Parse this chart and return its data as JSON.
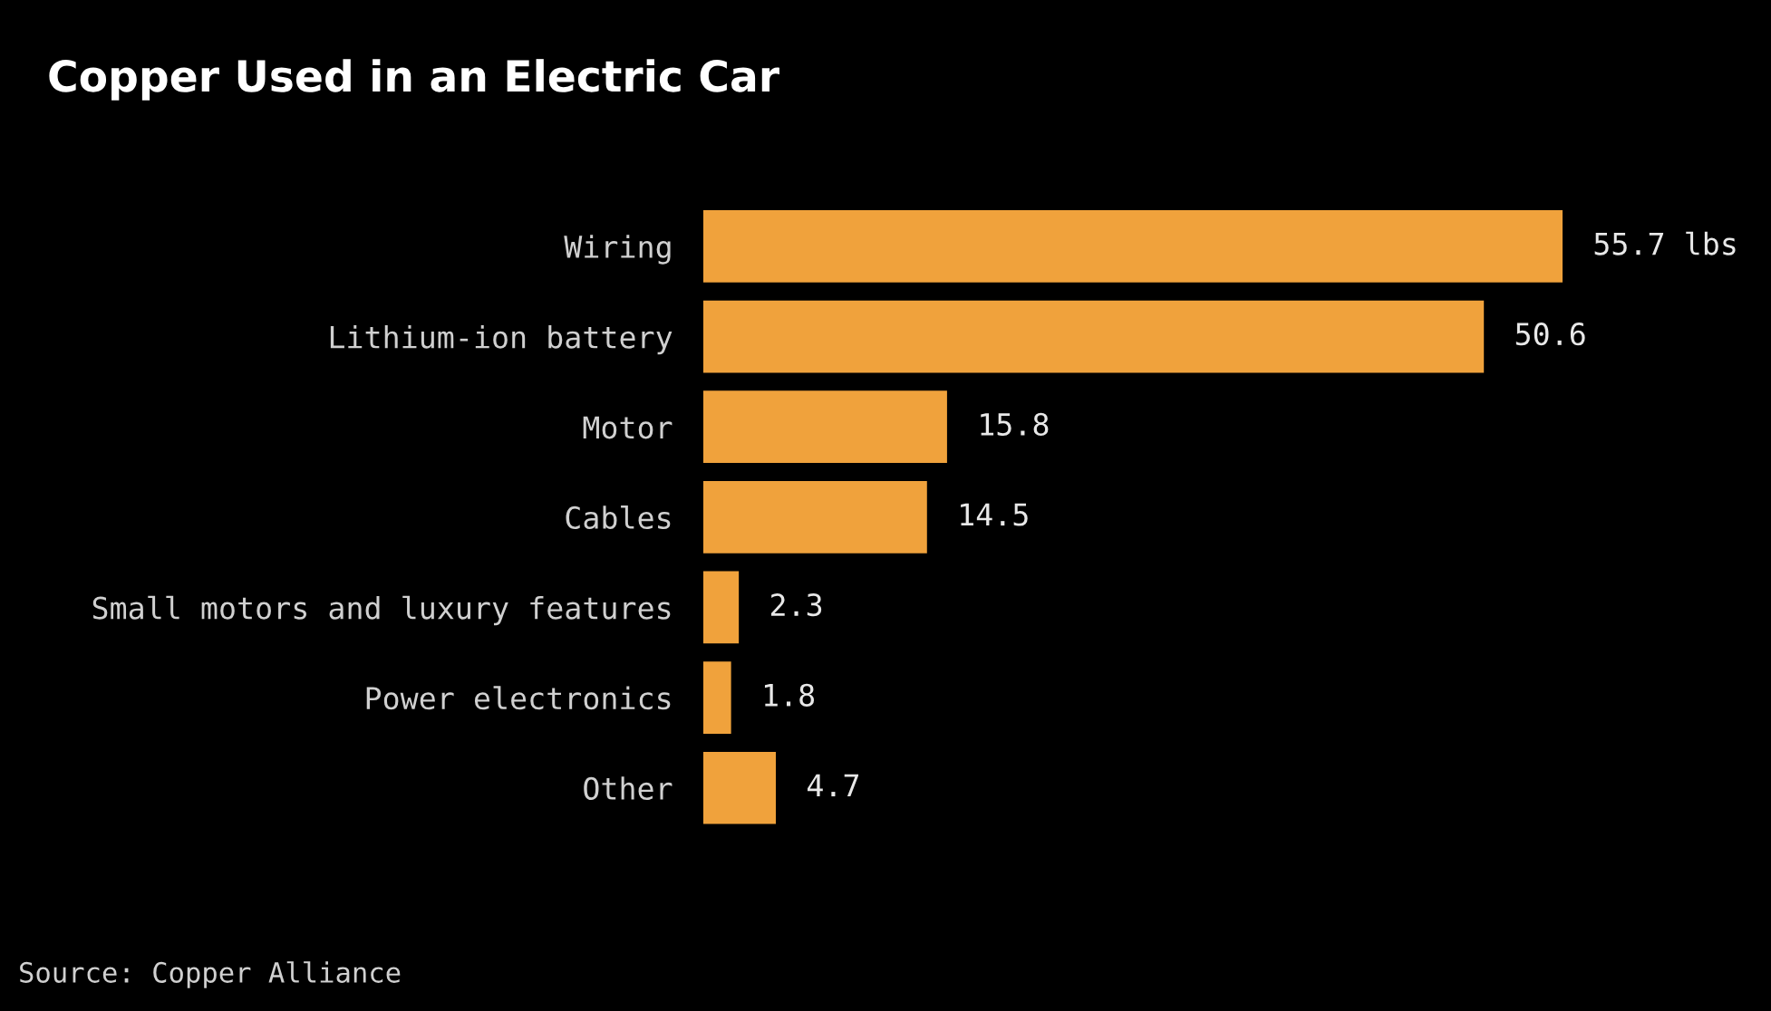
{
  "chart_data": {
    "type": "bar",
    "orientation": "horizontal",
    "title": "Copper Used in an Electric Car",
    "categories": [
      "Wiring",
      "Lithium-ion battery",
      "Motor",
      "Cables",
      "Small motors and luxury features",
      "Power electronics",
      "Other"
    ],
    "values": [
      55.7,
      50.6,
      15.8,
      14.5,
      2.3,
      1.8,
      4.7
    ],
    "value_labels": [
      "55.7 lbs",
      "50.6",
      "15.8",
      "14.5",
      "2.3",
      "1.8",
      "4.7"
    ],
    "color": "#f0a23c",
    "annotations": [
      "Source: Copper Alliance"
    ],
    "grid": false,
    "legend": false
  }
}
